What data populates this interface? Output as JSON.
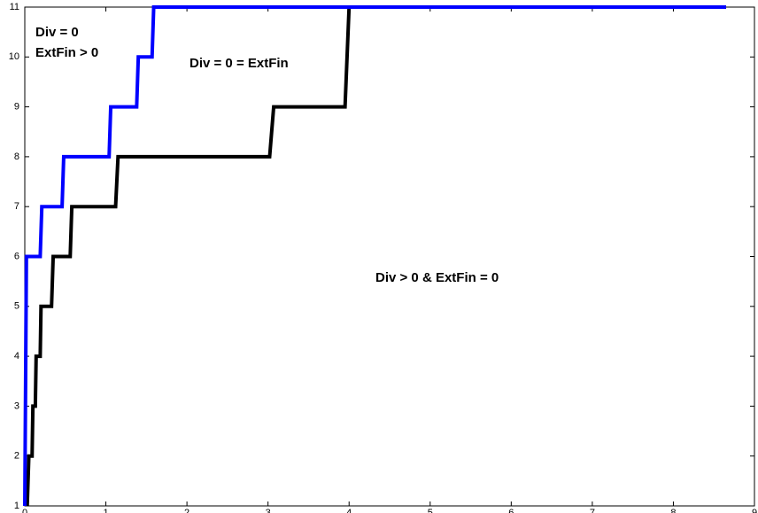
{
  "chart_data": {
    "type": "line",
    "series": [
      {
        "color": "#000000",
        "x": [
          0.03,
          0.05,
          0.09,
          0.1,
          0.13,
          0.14,
          0.19,
          0.2,
          0.33,
          0.35,
          0.56,
          0.58,
          1.12,
          1.15,
          3.02,
          3.07,
          3.95,
          4.0,
          8.65
        ],
        "values": [
          1,
          2,
          2,
          3,
          3,
          4,
          4,
          5,
          5,
          6,
          6,
          7,
          7,
          8,
          8,
          9,
          9,
          11,
          11
        ]
      },
      {
        "color": "#0000ff",
        "x": [
          0,
          0.02,
          0.19,
          0.21,
          0.46,
          0.48,
          1.04,
          1.06,
          1.38,
          1.4,
          1.57,
          1.59,
          8.65
        ],
        "values": [
          1,
          6,
          6,
          7,
          7,
          8,
          8,
          9,
          9,
          10,
          10,
          11,
          11
        ]
      }
    ],
    "annotations": [
      "Div = 0",
      "ExtFin > 0",
      "Div = 0 = ExtFin",
      "Div > 0 & ExtFin = 0"
    ],
    "xlim": [
      0,
      9
    ],
    "xticks": [
      0,
      1,
      2,
      3,
      4,
      5,
      6,
      7,
      8,
      9
    ],
    "ylim": [
      1,
      11
    ],
    "yticks": [
      1,
      2,
      3,
      4,
      5,
      6,
      7,
      8,
      9,
      10,
      11
    ]
  }
}
